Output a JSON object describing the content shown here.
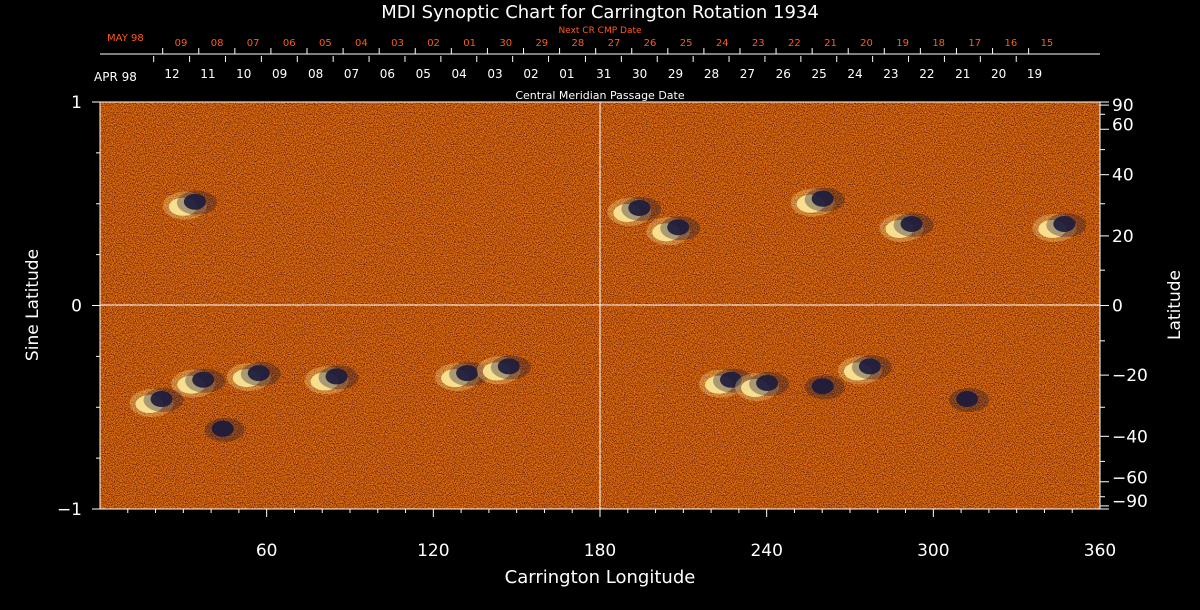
{
  "colors": {
    "background": "#000000",
    "field": "#ff5a14",
    "positive": "#fff0a0",
    "negative": "#1a1a3c",
    "axis": "#ffffff",
    "next_row": "#ff5a1e"
  },
  "chart_data": {
    "type": "heatmap",
    "title": "MDI Synoptic Chart for Carrington Rotation 1934",
    "xlabel": "Carrington Longitude",
    "ylabel_left": "Sine Latitude",
    "ylabel_right": "Latitude",
    "xlim": [
      0,
      360
    ],
    "ylim": [
      -1,
      1
    ],
    "x_ticks": [
      {
        "value": 60,
        "label": "60"
      },
      {
        "value": 120,
        "label": "120"
      },
      {
        "value": 180,
        "label": "180"
      },
      {
        "value": 240,
        "label": "240"
      },
      {
        "value": 300,
        "label": "300"
      },
      {
        "value": 360,
        "label": "360"
      }
    ],
    "y_ticks_left": [
      {
        "value": 1,
        "label": "1"
      },
      {
        "value": 0,
        "label": "0"
      },
      {
        "value": -1,
        "label": "−1"
      }
    ],
    "y_ticks_right": [
      {
        "lat": 90,
        "label": "90"
      },
      {
        "lat": 60,
        "label": "60"
      },
      {
        "lat": 40,
        "label": "40"
      },
      {
        "lat": 20,
        "label": "20"
      },
      {
        "lat": 0,
        "label": "0"
      },
      {
        "lat": -20,
        "label": "−20"
      },
      {
        "lat": -40,
        "label": "−40"
      },
      {
        "lat": -60,
        "label": "−60"
      },
      {
        "lat": -90,
        "label": "−90"
      }
    ],
    "top_axis": {
      "title": "Central Meridian Passage Date",
      "month_label": "APR 98",
      "labels": [
        "12",
        "11",
        "10",
        "09",
        "08",
        "07",
        "06",
        "05",
        "04",
        "03",
        "02",
        "01",
        "31",
        "30",
        "29",
        "28",
        "27",
        "26",
        "25",
        "24",
        "23",
        "22",
        "21",
        "20",
        "19"
      ]
    },
    "next_axis": {
      "title": "Next CR CMP Date",
      "month_label": "MAY 98",
      "labels": [
        "09",
        "08",
        "07",
        "06",
        "05",
        "04",
        "03",
        "02",
        "01",
        "30",
        "29",
        "28",
        "27",
        "26",
        "25",
        "24",
        "23",
        "22",
        "21",
        "20",
        "19",
        "18",
        "17",
        "16",
        "15"
      ]
    },
    "reference_lines": [
      {
        "axis": "x",
        "value": 180
      },
      {
        "axis": "y",
        "value": 0
      }
    ],
    "active_regions": [
      {
        "lon": 35,
        "lat": -22,
        "polarity": "mixed"
      },
      {
        "lon": 20,
        "lat": -28,
        "polarity": "mixed"
      },
      {
        "lon": 42,
        "lat": -38,
        "polarity": "negative"
      },
      {
        "lon": 55,
        "lat": -20,
        "polarity": "mixed"
      },
      {
        "lon": 83,
        "lat": -21,
        "polarity": "mixed"
      },
      {
        "lon": 130,
        "lat": -20,
        "polarity": "mixed"
      },
      {
        "lon": 145,
        "lat": -18,
        "polarity": "mixed"
      },
      {
        "lon": 225,
        "lat": -22,
        "polarity": "mixed"
      },
      {
        "lon": 238,
        "lat": -23,
        "polarity": "mixed"
      },
      {
        "lon": 258,
        "lat": -24,
        "polarity": "negative"
      },
      {
        "lon": 275,
        "lat": -18,
        "polarity": "mixed"
      },
      {
        "lon": 310,
        "lat": -28,
        "polarity": "negative"
      },
      {
        "lon": 32,
        "lat": 30,
        "polarity": "mixed"
      },
      {
        "lon": 192,
        "lat": 28,
        "polarity": "mixed"
      },
      {
        "lon": 206,
        "lat": 22,
        "polarity": "mixed"
      },
      {
        "lon": 258,
        "lat": 31,
        "polarity": "mixed"
      },
      {
        "lon": 290,
        "lat": 23,
        "polarity": "mixed"
      },
      {
        "lon": 345,
        "lat": 23,
        "polarity": "mixed"
      }
    ]
  }
}
